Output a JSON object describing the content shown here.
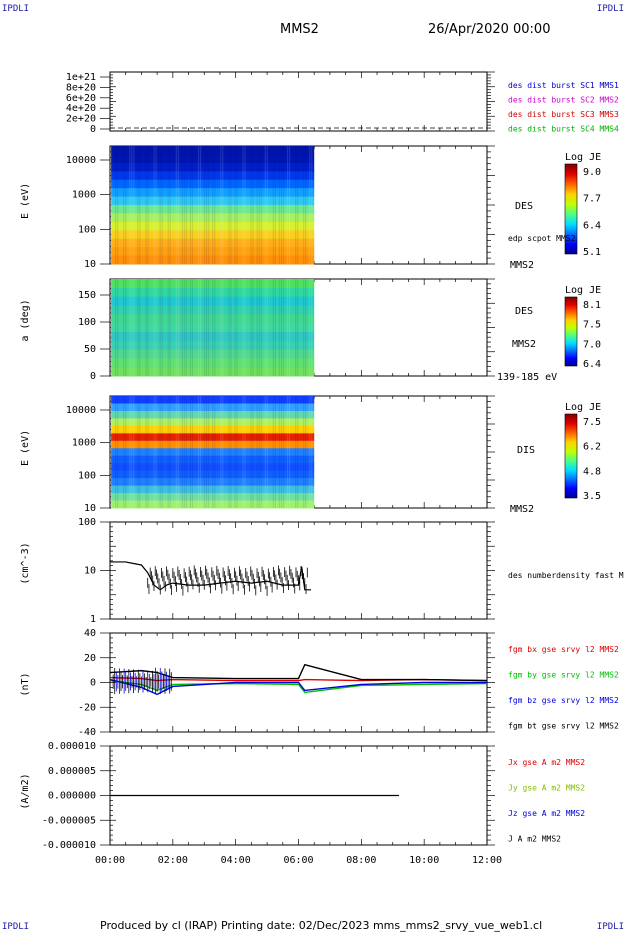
{
  "corner_labels": {
    "top_left": "IPDLI",
    "top_right": "IPDLI",
    "bottom_left": "IPDLI",
    "bottom_right": "IPDLI"
  },
  "header": {
    "spacecraft": "MMS2",
    "datetime": "26/Apr/2020 00:00"
  },
  "footer": {
    "text": "Produced by cl (IRAP)   Printing date: 02/Dec/2023   mms_mms2_srvy_vue_web1.cl"
  },
  "chart_data": [
    {
      "type": "line",
      "ylabel": "",
      "yticks": [
        "1e+21",
        "8e+20",
        "6e+20",
        "4e+20",
        "2e+20",
        "0"
      ],
      "legend": [
        {
          "label": "des dist burst SC1 MMS1",
          "color": "#0000d0"
        },
        {
          "label": "des dist burst SC2 MMS2",
          "color": "#d000d0"
        },
        {
          "label": "des dist burst SC3 MMS3",
          "color": "#d00000"
        },
        {
          "label": "des dist burst SC4 MMS4",
          "color": "#00b000"
        }
      ],
      "series": [
        {
          "values": [
            0,
            0,
            0,
            0,
            0,
            0,
            0,
            0,
            0,
            0,
            0,
            0,
            0
          ],
          "style": "dashed"
        }
      ]
    },
    {
      "type": "heatmap",
      "ylabel": "E (eV)",
      "yscale": "log",
      "yticks": [
        "10000",
        "1000",
        "100",
        "10"
      ],
      "ylim": [
        10,
        20000
      ],
      "data_end_hour": 6.5,
      "side_labels": [
        "DES",
        "edp scpot MMS2",
        "MMS2"
      ],
      "colorbar": {
        "title": "Log JE",
        "ticks": [
          "9.0",
          "7.7",
          "6.4",
          "5.1"
        ]
      }
    },
    {
      "type": "heatmap",
      "ylabel": "a (deg)",
      "yticks": [
        "150",
        "100",
        "50",
        "0"
      ],
      "ylim": [
        0,
        180
      ],
      "data_end_hour": 6.5,
      "side_labels": [
        "DES",
        "MMS2",
        "139-185 eV"
      ],
      "colorbar": {
        "title": "Log JE",
        "ticks": [
          "8.1",
          "7.5",
          "7.0",
          "6.4"
        ]
      }
    },
    {
      "type": "heatmap",
      "ylabel": "E (eV)",
      "yscale": "log",
      "yticks": [
        "10000",
        "1000",
        "100",
        "10"
      ],
      "ylim": [
        10,
        20000
      ],
      "data_end_hour": 6.5,
      "side_labels": [
        "DIS",
        "MMS2"
      ],
      "colorbar": {
        "title": "Log JE",
        "ticks": [
          "7.5",
          "6.2",
          "4.8",
          "3.5"
        ]
      }
    },
    {
      "type": "line",
      "ylabel": "(cm^-3)",
      "yscale": "log",
      "yticks": [
        "100",
        "10",
        "1"
      ],
      "ylim": [
        1,
        100
      ],
      "legend": [
        {
          "label": "des numberdensity fast M",
          "color": "#000000"
        }
      ],
      "series": [
        {
          "x": [
            0,
            0.5,
            1.0,
            1.2,
            1.4,
            1.6,
            1.8,
            2.0,
            2.5,
            3.0,
            3.5,
            4.0,
            4.5,
            5.0,
            5.5,
            6.0,
            6.1,
            6.2,
            6.4
          ],
          "values": [
            15,
            15,
            13,
            9,
            5,
            4,
            5,
            5.5,
            5,
            5,
            5.5,
            6,
            5.5,
            6,
            5,
            5,
            12,
            4,
            4
          ]
        }
      ]
    },
    {
      "type": "line",
      "ylabel": "(nT)",
      "yticks": [
        "40",
        "20",
        "0",
        "-20",
        "-40"
      ],
      "ylim": [
        -50,
        50
      ],
      "legend": [
        {
          "label": "fgm bx gse srvy l2 MMS2",
          "color": "#e00000"
        },
        {
          "label": "fgm by gse srvy l2 MMS2",
          "color": "#00c000"
        },
        {
          "label": "fgm bz gse srvy l2 MMS2",
          "color": "#0000e0"
        },
        {
          "label": "fgm bt gse srvy l2 MMS2",
          "color": "#000000"
        }
      ],
      "series": [
        {
          "name": "bx",
          "x": [
            0,
            1,
            1.5,
            2,
            4,
            6,
            6.2,
            8,
            10,
            12
          ],
          "values": [
            5,
            4,
            2,
            3,
            2,
            2,
            3,
            2,
            3,
            2
          ]
        },
        {
          "name": "by",
          "x": [
            0,
            1,
            1.5,
            2,
            4,
            6,
            6.2,
            8,
            10,
            12
          ],
          "values": [
            2,
            -2,
            -8,
            -2,
            -1,
            -2,
            -10,
            -3,
            -2,
            -1
          ]
        },
        {
          "name": "bz",
          "x": [
            0,
            1,
            1.5,
            2,
            4,
            6,
            6.2,
            8,
            10,
            12
          ],
          "values": [
            3,
            -5,
            -12,
            -4,
            0,
            0,
            -8,
            -2,
            0,
            0
          ]
        },
        {
          "name": "bt",
          "x": [
            0,
            1,
            1.5,
            2,
            4,
            6,
            6.2,
            8,
            10,
            12
          ],
          "values": [
            10,
            12,
            10,
            5,
            4,
            4,
            18,
            3,
            3,
            2
          ]
        }
      ]
    },
    {
      "type": "line",
      "ylabel": "(A/m2)",
      "yticks": [
        "0.000010",
        "0.000005",
        "0.000000",
        "-0.000005",
        "-0.000010"
      ],
      "ylim": [
        -1e-05,
        1e-05
      ],
      "legend": [
        {
          "label": "Jx gse A m2 MMS2",
          "color": "#e00000"
        },
        {
          "label": "Jy gse A m2 MMS2",
          "color": "#80c000"
        },
        {
          "label": "Jz gse A m2 MMS2",
          "color": "#0000e0"
        },
        {
          "label": "J A m2 MMS2",
          "color": "#000000"
        }
      ],
      "series": [
        {
          "x": [
            0,
            2,
            4,
            6,
            8,
            10,
            12
          ],
          "values": [
            0,
            0,
            0,
            0,
            0,
            0,
            0
          ]
        }
      ]
    }
  ],
  "time_axis": {
    "ticks": [
      "00:00",
      "02:00",
      "04:00",
      "06:00",
      "08:00",
      "10:00",
      "12:00"
    ],
    "range_hours": [
      0,
      12
    ]
  }
}
